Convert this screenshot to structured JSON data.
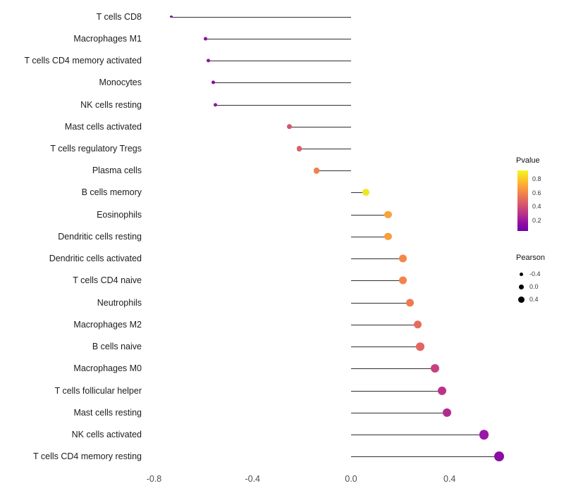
{
  "chart_data": {
    "type": "scatter",
    "variant": "lollipop",
    "title": "",
    "xlabel": "",
    "ylabel": "",
    "grid": false,
    "x_range": [
      -0.81,
      0.67
    ],
    "x_ticks": [
      {
        "value": -0.8,
        "label": "-0.8"
      },
      {
        "value": -0.4,
        "label": "-0.4"
      },
      {
        "value": 0.0,
        "label": "0.0"
      },
      {
        "value": 0.4,
        "label": "0.4"
      }
    ],
    "points": [
      {
        "category": "T cells CD8",
        "pearson": -0.73,
        "pvalue": 0.1,
        "color": "#8405a7"
      },
      {
        "category": "Macrophages M1",
        "pearson": -0.59,
        "pvalue": 0.13,
        "color": "#8e0ca4"
      },
      {
        "category": "T cells CD4 memory activated",
        "pearson": -0.58,
        "pvalue": 0.14,
        "color": "#9512a2"
      },
      {
        "category": "Monocytes",
        "pearson": -0.56,
        "pvalue": 0.13,
        "color": "#8e0ca4"
      },
      {
        "category": "NK cells resting",
        "pearson": -0.55,
        "pvalue": 0.14,
        "color": "#9512a2"
      },
      {
        "category": "Mast cells activated",
        "pearson": -0.25,
        "pvalue": 0.52,
        "color": "#d5536f"
      },
      {
        "category": "T cells regulatory Tregs",
        "pearson": -0.21,
        "pvalue": 0.56,
        "color": "#dd5e66"
      },
      {
        "category": "Plasma cells",
        "pearson": -0.14,
        "pvalue": 0.66,
        "color": "#f0804e"
      },
      {
        "category": "B cells memory",
        "pearson": 0.06,
        "pvalue": 0.86,
        "color": "#f0e525"
      },
      {
        "category": "Eosinophils",
        "pearson": 0.15,
        "pvalue": 0.74,
        "color": "#fba238"
      },
      {
        "category": "Dendritic cells resting",
        "pearson": 0.15,
        "pvalue": 0.72,
        "color": "#fa9d3b"
      },
      {
        "category": "Dendritic cells activated",
        "pearson": 0.21,
        "pvalue": 0.65,
        "color": "#f4874b"
      },
      {
        "category": "T cells CD4 naive",
        "pearson": 0.21,
        "pvalue": 0.64,
        "color": "#f3834e"
      },
      {
        "category": "Neutrophils",
        "pearson": 0.24,
        "pvalue": 0.6,
        "color": "#ee7b51"
      },
      {
        "category": "Macrophages M2",
        "pearson": 0.27,
        "pvalue": 0.55,
        "color": "#e66c5c"
      },
      {
        "category": "B cells naive",
        "pearson": 0.28,
        "pvalue": 0.53,
        "color": "#e26561"
      },
      {
        "category": "Macrophages M0",
        "pearson": 0.34,
        "pvalue": 0.43,
        "color": "#c8417c"
      },
      {
        "category": "T cells follicular helper",
        "pearson": 0.37,
        "pvalue": 0.37,
        "color": "#b93388"
      },
      {
        "category": "Mast cells resting",
        "pearson": 0.39,
        "pvalue": 0.33,
        "color": "#b02b90"
      },
      {
        "category": "NK cells activated",
        "pearson": 0.54,
        "pvalue": 0.16,
        "color": "#9a18a6"
      },
      {
        "category": "T cells CD4 memory resting",
        "pearson": 0.6,
        "pvalue": 0.12,
        "color": "#8d0ba5"
      }
    ],
    "legends": {
      "pvalue": {
        "title": "Pvalue",
        "bar_range": [
          0.05,
          0.92
        ],
        "ticks": [
          {
            "value": 0.8,
            "label": "0.8"
          },
          {
            "value": 0.6,
            "label": "0.6"
          },
          {
            "value": 0.4,
            "label": "0.4"
          },
          {
            "value": 0.2,
            "label": "0.2"
          }
        ],
        "gradient_top_to_bottom": [
          "#f0f921",
          "#fcce25",
          "#fca636",
          "#f2844b",
          "#e16462",
          "#cc4778",
          "#b12a90",
          "#8f0da4",
          "#7102a8"
        ]
      },
      "pearson": {
        "title": "Pearson",
        "items": [
          {
            "value": -0.4,
            "label": "-0.4"
          },
          {
            "value": 0.0,
            "label": "0.0"
          },
          {
            "value": 0.4,
            "label": "0.4"
          }
        ]
      }
    }
  }
}
